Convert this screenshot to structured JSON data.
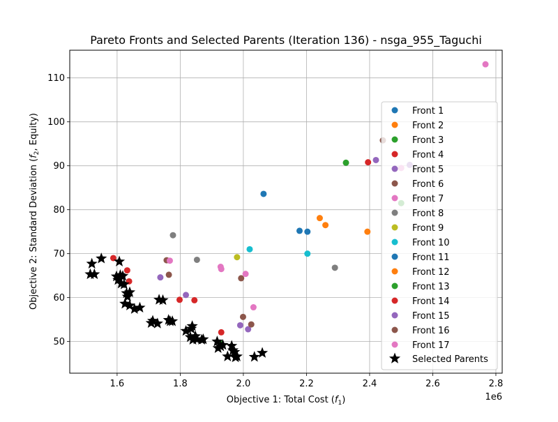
{
  "chart_data": {
    "type": "scatter",
    "title": "Pareto Fronts and Selected Parents (Iteration 136) - nsga_955_Taguchi",
    "xlabel": {
      "main": "Objective 1: Total Cost (",
      "sym": "f",
      "sub": "1",
      "end": ")"
    },
    "ylabel": {
      "main": "Objective 2: Standard Deviation (",
      "sym": "f",
      "sub": "2",
      "end": ", Equity)"
    },
    "x_offset_label": "1e6",
    "xlim": [
      1.45,
      2.82
    ],
    "ylim": [
      42.8,
      116.3
    ],
    "x_ticks": [
      1.6,
      1.8,
      2.0,
      2.2,
      2.4,
      2.6,
      2.8
    ],
    "x_tick_labels": [
      "1.6",
      "1.8",
      "2.0",
      "2.2",
      "2.4",
      "2.6",
      "2.8"
    ],
    "y_ticks": [
      50,
      60,
      70,
      80,
      90,
      100,
      110
    ],
    "y_tick_labels": [
      "50",
      "60",
      "70",
      "80",
      "90",
      "100",
      "110"
    ],
    "grid": true,
    "legend_position": "right",
    "series": [
      {
        "name": "Front 1",
        "color": "#1f77b4",
        "marker": "circle",
        "points": [
          [
            2.064,
            83.6
          ],
          [
            2.178,
            75.2
          ],
          [
            2.203,
            75.0
          ]
        ]
      },
      {
        "name": "Front 2",
        "color": "#ff7f0e",
        "marker": "circle",
        "points": [
          [
            2.242,
            78.1
          ],
          [
            2.26,
            76.5
          ],
          [
            2.393,
            75.0
          ]
        ]
      },
      {
        "name": "Front 3",
        "color": "#2ca02c",
        "marker": "circle",
        "points": [
          [
            2.325,
            90.7
          ],
          [
            1.93,
            49.5
          ]
        ]
      },
      {
        "name": "Front 4",
        "color": "#d62728",
        "marker": "circle",
        "points": [
          [
            2.395,
            90.8
          ],
          [
            1.588,
            69.0
          ],
          [
            1.632,
            66.2
          ],
          [
            1.638,
            63.7
          ],
          [
            1.798,
            59.5
          ],
          [
            1.845,
            59.4
          ],
          [
            1.93,
            52.1
          ]
        ]
      },
      {
        "name": "Front 5",
        "color": "#9467bd",
        "marker": "circle",
        "points": [
          [
            2.42,
            91.3
          ],
          [
            1.737,
            64.6
          ],
          [
            1.818,
            60.6
          ],
          [
            1.99,
            53.7
          ],
          [
            2.015,
            52.8
          ]
        ]
      },
      {
        "name": "Front 6",
        "color": "#8c564b",
        "marker": "circle",
        "points": [
          [
            2.442,
            95.8
          ],
          [
            1.757,
            68.5
          ],
          [
            1.764,
            65.2
          ],
          [
            1.993,
            64.4
          ],
          [
            1.999,
            55.6
          ],
          [
            2.025,
            53.9
          ]
        ]
      },
      {
        "name": "Front 7",
        "color": "#e377c2",
        "marker": "circle",
        "points": [
          [
            2.767,
            113.1
          ],
          [
            1.767,
            68.4
          ],
          [
            1.928,
            67.0
          ],
          [
            1.93,
            66.5
          ],
          [
            2.007,
            65.4
          ],
          [
            2.032,
            57.8
          ]
        ]
      },
      {
        "name": "Front 8",
        "color": "#7f7f7f",
        "marker": "circle",
        "points": [
          [
            1.777,
            74.2
          ],
          [
            1.853,
            68.6
          ],
          [
            2.29,
            66.8
          ]
        ]
      },
      {
        "name": "Front 9",
        "color": "#bcbd22",
        "marker": "circle",
        "points": [
          [
            1.98,
            69.2
          ]
        ]
      },
      {
        "name": "Front 10",
        "color": "#17becf",
        "marker": "circle",
        "points": [
          [
            2.02,
            71.0
          ],
          [
            2.203,
            70.0
          ]
        ]
      },
      {
        "name": "Front 11",
        "color": "#1f77b4",
        "marker": "circle",
        "points": []
      },
      {
        "name": "Front 12",
        "color": "#ff7f0e",
        "marker": "circle",
        "points": []
      },
      {
        "name": "Front 13",
        "color": "#2ca02c",
        "marker": "circle",
        "points": [
          [
            2.5,
            81.5
          ]
        ]
      },
      {
        "name": "Front 14",
        "color": "#d62728",
        "marker": "circle",
        "points": []
      },
      {
        "name": "Front 15",
        "color": "#9467bd",
        "marker": "circle",
        "points": [
          [
            2.527,
            90.2
          ]
        ]
      },
      {
        "name": "Front 16",
        "color": "#8c564b",
        "marker": "circle",
        "points": []
      },
      {
        "name": "Front 17",
        "color": "#e377c2",
        "marker": "circle",
        "points": [
          [
            2.5,
            89.5
          ]
        ]
      }
    ],
    "selected_parents": {
      "name": "Selected Parents",
      "color": "#000000",
      "marker": "star",
      "points": [
        [
          1.515,
          65.3
        ],
        [
          1.52,
          67.7
        ],
        [
          1.528,
          65.3
        ],
        [
          1.55,
          68.9
        ],
        [
          1.598,
          64.8
        ],
        [
          1.603,
          64.0
        ],
        [
          1.607,
          68.2
        ],
        [
          1.61,
          65.1
        ],
        [
          1.613,
          63.2
        ],
        [
          1.618,
          64.9
        ],
        [
          1.622,
          63.0
        ],
        [
          1.625,
          58.6
        ],
        [
          1.63,
          61.0
        ],
        [
          1.633,
          60.2
        ],
        [
          1.64,
          58.2
        ],
        [
          1.64,
          61.2
        ],
        [
          1.655,
          57.4
        ],
        [
          1.672,
          57.7
        ],
        [
          1.708,
          54.2
        ],
        [
          1.713,
          54.7
        ],
        [
          1.728,
          54.1
        ],
        [
          1.733,
          59.5
        ],
        [
          1.745,
          59.4
        ],
        [
          1.763,
          54.9
        ],
        [
          1.768,
          54.6
        ],
        [
          1.775,
          54.6
        ],
        [
          1.818,
          52.4
        ],
        [
          1.832,
          51.0
        ],
        [
          1.835,
          52.9
        ],
        [
          1.838,
          53.5
        ],
        [
          1.84,
          50.4
        ],
        [
          1.848,
          51.2
        ],
        [
          1.853,
          50.5
        ],
        [
          1.868,
          50.4
        ],
        [
          1.873,
          50.5
        ],
        [
          1.917,
          50.0
        ],
        [
          1.92,
          48.5
        ],
        [
          1.928,
          48.9
        ],
        [
          1.935,
          49.2
        ],
        [
          1.95,
          46.6
        ],
        [
          1.963,
          49.0
        ],
        [
          1.967,
          48.0
        ],
        [
          1.972,
          47.6
        ],
        [
          1.975,
          46.4
        ],
        [
          1.98,
          46.6
        ],
        [
          2.035,
          46.5
        ],
        [
          2.06,
          47.4
        ]
      ]
    }
  }
}
